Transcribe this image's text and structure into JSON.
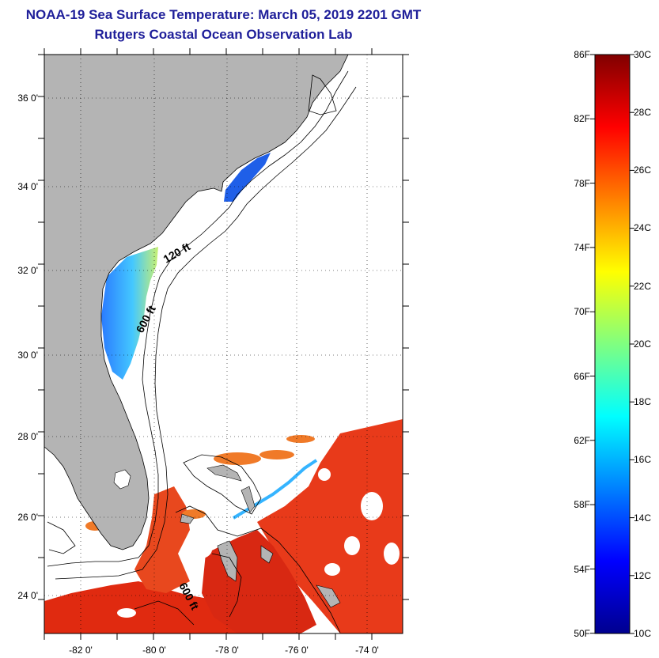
{
  "header": {
    "title": "NOAA-19 Sea Surface Temperature:  March 05, 2019 2201 GMT",
    "subtitle": "Rutgers Coastal Ocean Observation Lab"
  },
  "map": {
    "lat_labels": [
      "36 0'",
      "34 0'",
      "32 0'",
      "30 0'",
      "28 0'",
      "26 0'",
      "24 0'"
    ],
    "lon_labels": [
      "-82 0'",
      "-80 0'",
      "-78 0'",
      "-76 0'",
      "-74 0'"
    ],
    "contour_labels": [
      "120 ft",
      "600 ft",
      "600 ft"
    ],
    "colors": {
      "land": "#b4b4b4",
      "no_data": "#ffffff",
      "frame": "#000000"
    }
  },
  "colorbar": {
    "fahrenheit_labels": [
      "86F",
      "82F",
      "78F",
      "74F",
      "70F",
      "66F",
      "62F",
      "58F",
      "54F",
      "50F"
    ],
    "celsius_labels": [
      "30C",
      "28C",
      "26C",
      "24C",
      "22C",
      "20C",
      "18C",
      "16C",
      "14C",
      "12C",
      "10C"
    ],
    "colors": [
      "#00008f",
      "#0000ff",
      "#0080ff",
      "#00ffff",
      "#80ff80",
      "#ffff00",
      "#ff8000",
      "#ff0000",
      "#800000"
    ]
  }
}
